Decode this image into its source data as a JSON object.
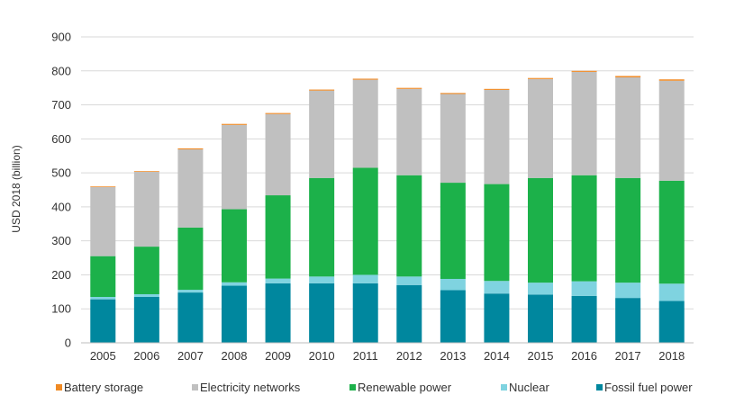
{
  "chart_data": {
    "type": "bar",
    "stacked": true,
    "ylabel": "USD 2018 (billion)",
    "ylim": [
      0,
      900
    ],
    "yticks": [
      0,
      100,
      200,
      300,
      400,
      500,
      600,
      700,
      800,
      900
    ],
    "grid": true,
    "legend_position": "bottom",
    "categories": [
      "2005",
      "2006",
      "2007",
      "2008",
      "2009",
      "2010",
      "2011",
      "2012",
      "2013",
      "2014",
      "2015",
      "2016",
      "2017",
      "2018"
    ],
    "series": [
      {
        "name": "Fossil fuel power",
        "color": "#00879e",
        "values": [
          128,
          135,
          148,
          168,
          175,
          175,
          175,
          170,
          155,
          145,
          142,
          138,
          132,
          123
        ]
      },
      {
        "name": "Nuclear",
        "color": "#7fd3e0",
        "values": [
          7,
          8,
          8,
          10,
          14,
          20,
          25,
          25,
          33,
          37,
          35,
          43,
          45,
          51
        ]
      },
      {
        "name": "Renewable power",
        "color": "#1cb14a",
        "values": [
          120,
          140,
          183,
          215,
          245,
          290,
          315,
          298,
          283,
          285,
          308,
          312,
          308,
          303
        ]
      },
      {
        "name": "Electricity networks",
        "color": "#c0c0c0",
        "values": [
          203,
          220,
          230,
          248,
          239,
          257,
          259,
          254,
          261,
          277,
          291,
          304,
          296,
          294
        ]
      },
      {
        "name": "Battery storage",
        "color": "#f08a24",
        "values": [
          2,
          2,
          3,
          3,
          3,
          3,
          3,
          3,
          3,
          3,
          3,
          3,
          4,
          4
        ]
      }
    ],
    "legend": [
      {
        "name": "Battery storage",
        "color": "#f08a24"
      },
      {
        "name": "Electricity networks",
        "color": "#c0c0c0"
      },
      {
        "name": "Renewable power",
        "color": "#1cb14a"
      },
      {
        "name": "Nuclear",
        "color": "#7fd3e0"
      },
      {
        "name": "Fossil fuel power",
        "color": "#00879e"
      }
    ]
  }
}
